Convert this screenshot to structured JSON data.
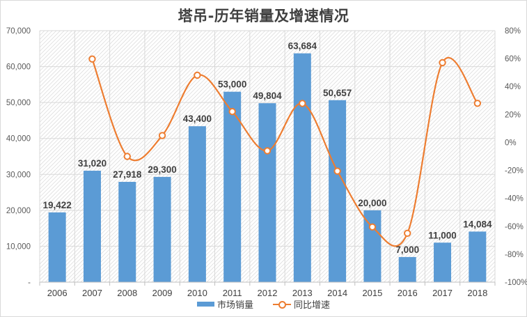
{
  "chart_data": {
    "type": "bar+line",
    "title": "塔吊-历年销量及增速情况",
    "categories": [
      "2006",
      "2007",
      "2008",
      "2009",
      "2010",
      "2011",
      "2012",
      "2013",
      "2014",
      "2015",
      "2016",
      "2017",
      "2018"
    ],
    "series": [
      {
        "name": "市场销量",
        "type": "bar",
        "axis": "left",
        "color": "#5b9bd5",
        "values": [
          19422,
          31020,
          27918,
          29300,
          43400,
          53000,
          49804,
          63684,
          50657,
          20000,
          7000,
          11000,
          14084
        ],
        "labels": [
          "19,422",
          "31,020",
          "27,918",
          "29,300",
          "43,400",
          "53,000",
          "49,804",
          "63,684",
          "50,657",
          "20,000",
          "7,000",
          "11,000",
          "14,084"
        ]
      },
      {
        "name": "同比增速",
        "type": "line",
        "axis": "right",
        "color": "#ed7d31",
        "smooth": true,
        "values": [
          null,
          0.597,
          -0.1,
          0.0495,
          0.481,
          0.221,
          -0.06,
          0.279,
          -0.205,
          -0.605,
          -0.65,
          0.571,
          0.28
        ]
      }
    ],
    "left_axis": {
      "min": 0,
      "max": 70000,
      "step": 10000,
      "tick_labels": [
        "-",
        "10,000",
        "20,000",
        "30,000",
        "40,000",
        "50,000",
        "60,000",
        "70,000"
      ]
    },
    "right_axis": {
      "min": -1.0,
      "max": 0.8,
      "step": 0.2,
      "tick_labels": [
        "-100%",
        "-80%",
        "-60%",
        "-40%",
        "-20%",
        "0%",
        "20%",
        "40%",
        "60%",
        "80%"
      ]
    },
    "grid": true,
    "legend_position": "bottom",
    "xlabel": "",
    "ylabel": ""
  },
  "legend": {
    "bar_label": "市场销量",
    "line_label": "同比增速"
  }
}
